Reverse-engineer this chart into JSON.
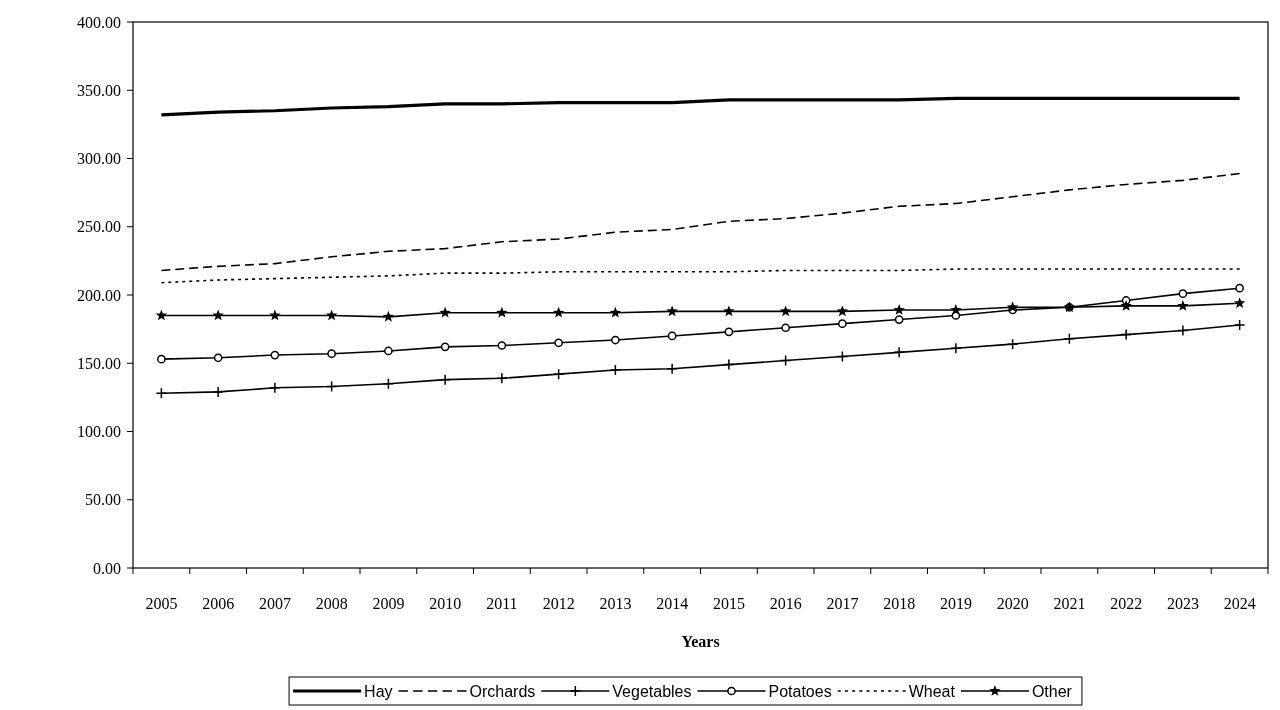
{
  "chart_data": {
    "type": "line",
    "xlabel": "Years",
    "categories": [
      "2005",
      "2006",
      "2007",
      "2008",
      "2009",
      "2010",
      "2011",
      "2012",
      "2013",
      "2014",
      "2015",
      "2016",
      "2017",
      "2018",
      "2019",
      "2020",
      "2021",
      "2022",
      "2023",
      "2024"
    ],
    "series": [
      {
        "name": "Hay",
        "color": "#000000",
        "line_style": "solid",
        "marker": "none",
        "values": [
          332,
          334,
          335,
          337,
          338,
          340,
          340,
          341,
          341,
          341,
          343,
          343,
          343,
          343,
          344,
          344,
          344,
          344,
          344,
          344
        ]
      },
      {
        "name": "Orchards",
        "color": "#000000",
        "line_style": "dashed",
        "marker": "none",
        "values": [
          218,
          221,
          223,
          228,
          232,
          234,
          239,
          241,
          246,
          248,
          254,
          256,
          260,
          265,
          267,
          272,
          277,
          281,
          284,
          289
        ]
      },
      {
        "name": "Vegetables",
        "color": "#000000",
        "line_style": "solid",
        "marker": "cross",
        "values": [
          128,
          129,
          132,
          133,
          135,
          138,
          139,
          142,
          145,
          146,
          149,
          152,
          155,
          158,
          161,
          164,
          168,
          171,
          174,
          178
        ]
      },
      {
        "name": "Potatoes",
        "color": "#000000",
        "line_style": "solid",
        "marker": "circle",
        "values": [
          153,
          154,
          156,
          157,
          159,
          162,
          163,
          165,
          167,
          170,
          173,
          176,
          179,
          182,
          185,
          189,
          191,
          196,
          201,
          205
        ]
      },
      {
        "name": "Wheat",
        "color": "#000000",
        "line_style": "dotted",
        "marker": "none",
        "values": [
          209,
          211,
          212,
          213,
          214,
          216,
          216,
          217,
          217,
          217,
          217,
          218,
          218,
          218,
          219,
          219,
          219,
          219,
          219,
          219
        ]
      },
      {
        "name": "Other",
        "color": "#000000",
        "line_style": "solid",
        "marker": "star",
        "values": [
          185,
          185,
          185,
          185,
          184,
          187,
          187,
          187,
          187,
          188,
          188,
          188,
          188,
          189,
          189,
          191,
          191,
          192,
          192,
          194
        ]
      }
    ],
    "ylim": [
      0,
      400
    ],
    "yticks": [
      {
        "value": 0,
        "label": "0.00"
      },
      {
        "value": 50,
        "label": "50.00"
      },
      {
        "value": 100,
        "label": "100.00"
      },
      {
        "value": 150,
        "label": "150.00"
      },
      {
        "value": 200,
        "label": "200.00"
      },
      {
        "value": 250,
        "label": "250.00"
      },
      {
        "value": 300,
        "label": "300.00"
      },
      {
        "value": 350,
        "label": "350.00"
      },
      {
        "value": 400,
        "label": "400.00"
      }
    ],
    "legend": "bottom"
  }
}
